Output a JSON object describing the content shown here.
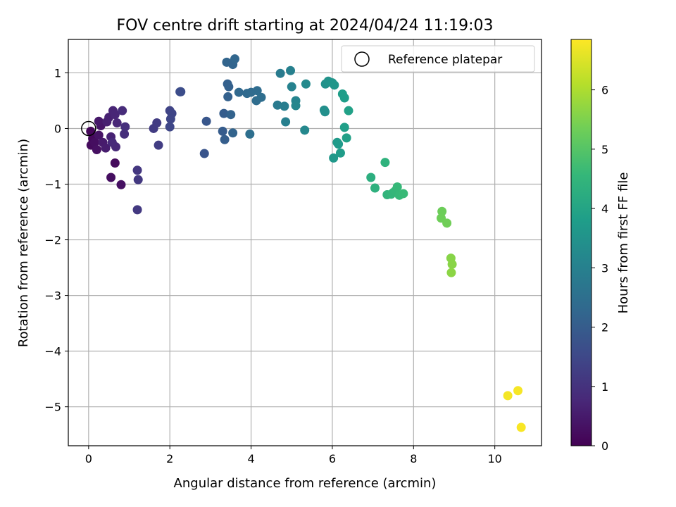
{
  "chart_data": {
    "type": "scatter",
    "title": "FOV centre drift starting at 2024/04/24 11:19:03",
    "xlabel": "Angular distance from reference (arcmin)",
    "ylabel": "Rotation from reference (arcmin)",
    "xlim": [
      -0.5,
      11.15
    ],
    "ylim": [
      -5.7,
      1.6
    ],
    "xticks": [
      0,
      2,
      4,
      6,
      8,
      10
    ],
    "yticks": [
      1,
      0,
      -1,
      -2,
      -3,
      -4,
      -5
    ],
    "grid": true,
    "legend": {
      "placement": "top-right",
      "entries": [
        "Reference platepar"
      ]
    },
    "reference_point": {
      "x": 0,
      "y": 0
    },
    "colorbar": {
      "label": "Hours from first FF file",
      "range": [
        0,
        6.85
      ],
      "ticks": [
        0,
        1,
        2,
        3,
        4,
        5,
        6
      ],
      "colormap": "viridis",
      "colors": [
        "#440154",
        "#482878",
        "#3e4989",
        "#31688e",
        "#26828e",
        "#1f9e89",
        "#35b779",
        "#6ece58",
        "#b5de2b",
        "#fde725"
      ]
    },
    "points": [
      {
        "x": 0.05,
        "y": -0.05,
        "t": 0.1
      },
      {
        "x": 0.1,
        "y": -0.18,
        "t": 0.15
      },
      {
        "x": 0.06,
        "y": -0.3,
        "t": 0.2
      },
      {
        "x": 0.15,
        "y": -0.25,
        "t": 0.25
      },
      {
        "x": 0.2,
        "y": -0.38,
        "t": 0.3
      },
      {
        "x": 0.25,
        "y": -0.12,
        "t": 0.35
      },
      {
        "x": 0.3,
        "y": 0.05,
        "t": 0.4
      },
      {
        "x": 0.25,
        "y": 0.13,
        "t": 0.45
      },
      {
        "x": 0.35,
        "y": -0.25,
        "t": 0.5
      },
      {
        "x": 0.42,
        "y": -0.35,
        "t": 0.55
      },
      {
        "x": 0.45,
        "y": 0.12,
        "t": 0.6
      },
      {
        "x": 0.5,
        "y": 0.2,
        "t": 0.62
      },
      {
        "x": 0.55,
        "y": -0.15,
        "t": 0.65
      },
      {
        "x": 0.6,
        "y": 0.32,
        "t": 0.7
      },
      {
        "x": 0.65,
        "y": 0.25,
        "t": 0.72
      },
      {
        "x": 0.7,
        "y": 0.1,
        "t": 0.75
      },
      {
        "x": 0.67,
        "y": -0.33,
        "t": 0.78
      },
      {
        "x": 0.58,
        "y": -0.25,
        "t": 0.8
      },
      {
        "x": 0.65,
        "y": -0.62,
        "t": 0.2
      },
      {
        "x": 0.55,
        "y": -0.88,
        "t": 0.25
      },
      {
        "x": 0.8,
        "y": -1.01,
        "t": 0.3
      },
      {
        "x": 0.83,
        "y": 0.32,
        "t": 0.85
      },
      {
        "x": 0.88,
        "y": -0.1,
        "t": 0.9
      },
      {
        "x": 0.9,
        "y": 0.03,
        "t": 0.95
      },
      {
        "x": 1.2,
        "y": -0.75,
        "t": 1.1
      },
      {
        "x": 1.22,
        "y": -0.92,
        "t": 1.12
      },
      {
        "x": 1.2,
        "y": -1.46,
        "t": 1.15
      },
      {
        "x": 1.6,
        "y": 0.0,
        "t": 1.2
      },
      {
        "x": 1.68,
        "y": 0.1,
        "t": 1.22
      },
      {
        "x": 1.72,
        "y": -0.3,
        "t": 1.25
      },
      {
        "x": 2.0,
        "y": 0.32,
        "t": 1.4
      },
      {
        "x": 2.05,
        "y": 0.27,
        "t": 1.42
      },
      {
        "x": 2.02,
        "y": 0.17,
        "t": 1.45
      },
      {
        "x": 2.0,
        "y": 0.03,
        "t": 1.48
      },
      {
        "x": 2.25,
        "y": 0.66,
        "t": 1.6
      },
      {
        "x": 2.27,
        "y": 0.66,
        "t": 1.62
      },
      {
        "x": 2.85,
        "y": -0.45,
        "t": 1.8
      },
      {
        "x": 2.9,
        "y": 0.13,
        "t": 1.85
      },
      {
        "x": 3.3,
        "y": -0.05,
        "t": 2.0
      },
      {
        "x": 3.33,
        "y": 0.27,
        "t": 2.02
      },
      {
        "x": 3.35,
        "y": -0.2,
        "t": 2.05
      },
      {
        "x": 3.42,
        "y": 0.8,
        "t": 2.08
      },
      {
        "x": 3.45,
        "y": 0.75,
        "t": 2.1
      },
      {
        "x": 3.43,
        "y": 0.57,
        "t": 2.12
      },
      {
        "x": 3.5,
        "y": 0.25,
        "t": 2.15
      },
      {
        "x": 3.55,
        "y": -0.08,
        "t": 2.18
      },
      {
        "x": 3.4,
        "y": 1.19,
        "t": 2.2
      },
      {
        "x": 3.55,
        "y": 1.15,
        "t": 2.22
      },
      {
        "x": 3.6,
        "y": 1.25,
        "t": 2.25
      },
      {
        "x": 3.7,
        "y": 0.65,
        "t": 2.3
      },
      {
        "x": 3.9,
        "y": 0.63,
        "t": 2.35
      },
      {
        "x": 4.0,
        "y": 0.65,
        "t": 2.38
      },
      {
        "x": 4.15,
        "y": 0.68,
        "t": 2.4
      },
      {
        "x": 4.13,
        "y": 0.5,
        "t": 2.42
      },
      {
        "x": 4.25,
        "y": 0.56,
        "t": 2.45
      },
      {
        "x": 3.97,
        "y": -0.1,
        "t": 2.5
      },
      {
        "x": 4.65,
        "y": 0.42,
        "t": 2.8
      },
      {
        "x": 4.72,
        "y": 0.99,
        "t": 2.85
      },
      {
        "x": 4.82,
        "y": 0.4,
        "t": 2.9
      },
      {
        "x": 4.85,
        "y": 0.12,
        "t": 2.95
      },
      {
        "x": 4.97,
        "y": 1.04,
        "t": 3.0
      },
      {
        "x": 5.0,
        "y": 0.75,
        "t": 3.05
      },
      {
        "x": 5.1,
        "y": 0.5,
        "t": 3.1
      },
      {
        "x": 5.1,
        "y": 0.41,
        "t": 3.15
      },
      {
        "x": 5.32,
        "y": -0.03,
        "t": 3.2
      },
      {
        "x": 5.35,
        "y": 0.8,
        "t": 3.25
      },
      {
        "x": 5.8,
        "y": 0.33,
        "t": 3.4
      },
      {
        "x": 5.82,
        "y": 0.3,
        "t": 3.42
      },
      {
        "x": 5.83,
        "y": 0.8,
        "t": 3.45
      },
      {
        "x": 5.9,
        "y": 0.85,
        "t": 3.5
      },
      {
        "x": 6.0,
        "y": 0.82,
        "t": 3.55
      },
      {
        "x": 6.05,
        "y": 0.78,
        "t": 3.6
      },
      {
        "x": 6.03,
        "y": -0.53,
        "t": 3.65
      },
      {
        "x": 6.12,
        "y": -0.25,
        "t": 3.7
      },
      {
        "x": 6.15,
        "y": -0.28,
        "t": 3.72
      },
      {
        "x": 6.2,
        "y": -0.44,
        "t": 3.75
      },
      {
        "x": 6.25,
        "y": 0.62,
        "t": 3.8
      },
      {
        "x": 6.3,
        "y": 0.55,
        "t": 3.82
      },
      {
        "x": 6.3,
        "y": 0.02,
        "t": 3.85
      },
      {
        "x": 6.35,
        "y": -0.17,
        "t": 3.88
      },
      {
        "x": 6.4,
        "y": 0.32,
        "t": 3.9
      },
      {
        "x": 6.95,
        "y": -0.88,
        "t": 4.3
      },
      {
        "x": 7.05,
        "y": -1.07,
        "t": 4.35
      },
      {
        "x": 7.3,
        "y": -0.61,
        "t": 4.4
      },
      {
        "x": 7.35,
        "y": -1.19,
        "t": 4.45
      },
      {
        "x": 7.45,
        "y": -1.18,
        "t": 4.5
      },
      {
        "x": 7.5,
        "y": -1.15,
        "t": 4.52
      },
      {
        "x": 7.55,
        "y": -1.12,
        "t": 4.55
      },
      {
        "x": 7.6,
        "y": -1.05,
        "t": 4.58
      },
      {
        "x": 7.65,
        "y": -1.2,
        "t": 4.6
      },
      {
        "x": 7.75,
        "y": -1.17,
        "t": 4.62
      },
      {
        "x": 8.7,
        "y": -1.49,
        "t": 5.3
      },
      {
        "x": 8.68,
        "y": -1.61,
        "t": 5.32
      },
      {
        "x": 8.82,
        "y": -1.7,
        "t": 5.35
      },
      {
        "x": 8.92,
        "y": -2.33,
        "t": 5.6
      },
      {
        "x": 8.95,
        "y": -2.44,
        "t": 5.62
      },
      {
        "x": 8.93,
        "y": -2.59,
        "t": 5.65
      },
      {
        "x": 10.32,
        "y": -4.8,
        "t": 6.75
      },
      {
        "x": 10.57,
        "y": -4.71,
        "t": 6.78
      },
      {
        "x": 10.65,
        "y": -5.37,
        "t": 6.8
      }
    ]
  }
}
